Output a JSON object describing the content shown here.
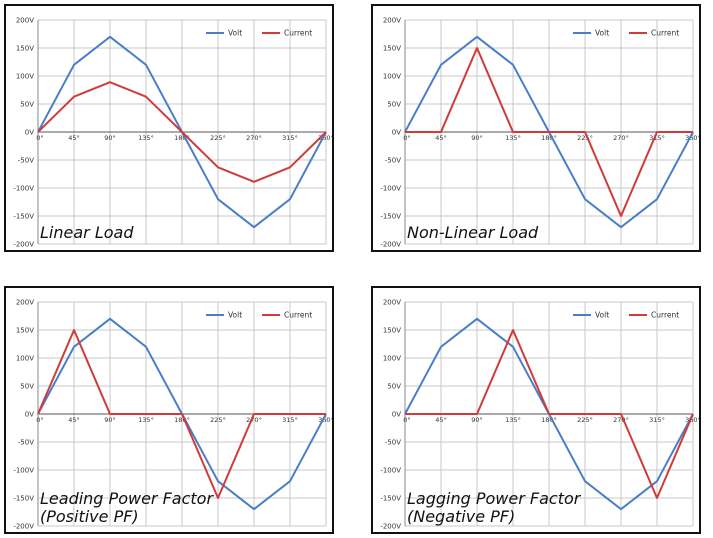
{
  "chart_data": [
    {
      "type": "line",
      "title": "Linear Load",
      "x": [
        0,
        45,
        90,
        135,
        180,
        225,
        270,
        315,
        360
      ],
      "xticks": [
        "0°",
        "45°",
        "90°",
        "135°",
        "180°",
        "225°",
        "270°",
        "315°",
        "360°"
      ],
      "yticks": [
        "200V",
        "150V",
        "100V",
        "50V",
        "0V",
        "-50V",
        "-100V",
        "-150V",
        "-200V"
      ],
      "ylim": [
        -200,
        200
      ],
      "xlim": [
        0,
        360
      ],
      "grid": true,
      "legend_position": "top-right",
      "series": [
        {
          "name": "Volt",
          "color": "#4A7FC8",
          "values": [
            0,
            120,
            170,
            120,
            0,
            -120,
            -170,
            -120,
            0
          ]
        },
        {
          "name": "Current",
          "color": "#D03B3B",
          "values": [
            0,
            63,
            89,
            63,
            0,
            -63,
            -89,
            -63,
            0
          ]
        }
      ]
    },
    {
      "type": "line",
      "title": "Non-Linear Load",
      "x": [
        0,
        45,
        90,
        135,
        180,
        225,
        270,
        315,
        360
      ],
      "xticks": [
        "0°",
        "45°",
        "90°",
        "135°",
        "180°",
        "225°",
        "270°",
        "315°",
        "360°"
      ],
      "yticks": [
        "200V",
        "150V",
        "100V",
        "50V",
        "0V",
        "-50V",
        "-100V",
        "-150V",
        "-200V"
      ],
      "ylim": [
        -200,
        200
      ],
      "xlim": [
        0,
        360
      ],
      "grid": true,
      "legend_position": "top-right",
      "series": [
        {
          "name": "Volt",
          "color": "#4A7FC8",
          "values": [
            0,
            120,
            170,
            120,
            0,
            -120,
            -170,
            -120,
            0
          ]
        },
        {
          "name": "Current",
          "color": "#D03B3B",
          "values": [
            0,
            0,
            150,
            0,
            0,
            0,
            -150,
            0,
            0
          ]
        }
      ]
    },
    {
      "type": "line",
      "title": "Leading Power Factor (Positive PF)",
      "x": [
        0,
        45,
        90,
        135,
        180,
        225,
        270,
        315,
        360
      ],
      "xticks": [
        "0°",
        "45°",
        "90°",
        "135°",
        "180°",
        "225°",
        "270°",
        "315°",
        "360°"
      ],
      "yticks": [
        "200V",
        "150V",
        "100V",
        "50V",
        "0V",
        "-50V",
        "-100V",
        "-150V",
        "-200V"
      ],
      "ylim": [
        -200,
        200
      ],
      "xlim": [
        0,
        360
      ],
      "grid": true,
      "legend_position": "top-right",
      "series": [
        {
          "name": "Volt",
          "color": "#4A7FC8",
          "values": [
            0,
            120,
            170,
            120,
            0,
            -120,
            -170,
            -120,
            0
          ]
        },
        {
          "name": "Current",
          "color": "#D03B3B",
          "values": [
            0,
            150,
            0,
            0,
            0,
            -150,
            0,
            0,
            0
          ]
        }
      ]
    },
    {
      "type": "line",
      "title": "Lagging Power Factor (Negative PF)",
      "x": [
        0,
        45,
        90,
        135,
        180,
        225,
        270,
        315,
        360
      ],
      "xticks": [
        "0°",
        "45°",
        "90°",
        "135°",
        "180°",
        "225°",
        "270°",
        "315°",
        "360°"
      ],
      "yticks": [
        "200V",
        "150V",
        "100V",
        "50V",
        "0V",
        "-50V",
        "-100V",
        "-150V",
        "-200V"
      ],
      "ylim": [
        -200,
        200
      ],
      "xlim": [
        0,
        360
      ],
      "grid": true,
      "legend_position": "top-right",
      "series": [
        {
          "name": "Volt",
          "color": "#4A7FC8",
          "values": [
            0,
            120,
            170,
            120,
            0,
            -120,
            -170,
            -120,
            0
          ]
        },
        {
          "name": "Current",
          "color": "#D03B3B",
          "values": [
            0,
            0,
            0,
            150,
            0,
            0,
            0,
            -150,
            0
          ]
        }
      ]
    }
  ]
}
